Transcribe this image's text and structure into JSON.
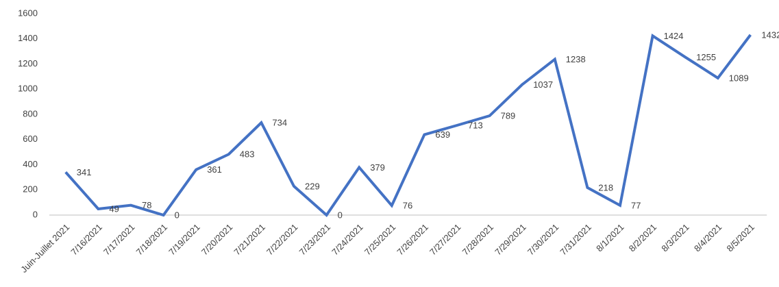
{
  "chart_data": {
    "type": "line",
    "categories": [
      "Juin-Juillet 2021",
      "7/16/2021",
      "7/17/2021",
      "7/18/2021",
      "7/19/2021",
      "7/20/2021",
      "7/21/2021",
      "7/22/2021",
      "7/23/2021",
      "7/24/2021",
      "7/25/2021",
      "7/26/2021",
      "7/27/2021",
      "7/28/2021",
      "7/29/2021",
      "7/30/2021",
      "7/31/2021",
      "8/1/2021",
      "8/2/2021",
      "8/3/2021",
      "8/4/2021",
      "8/5/2021"
    ],
    "values": [
      341,
      49,
      78,
      0,
      361,
      483,
      734,
      229,
      0,
      379,
      76,
      639,
      713,
      789,
      1037,
      1238,
      218,
      77,
      1424,
      1255,
      1089,
      1432
    ],
    "color": "#4472c4",
    "ylim": [
      0,
      1600
    ],
    "yticks": [
      0,
      200,
      400,
      600,
      800,
      1000,
      1200,
      1400,
      1600
    ],
    "grid": false
  }
}
